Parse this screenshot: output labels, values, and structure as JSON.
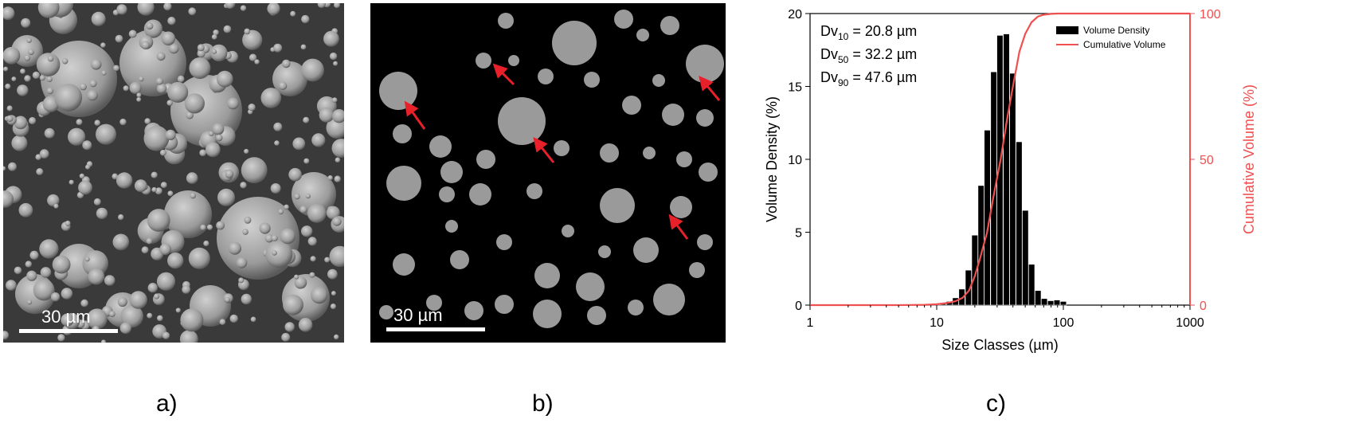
{
  "panels": {
    "a": {
      "caption": "a)",
      "scale_label": "30 µm"
    },
    "b": {
      "caption": "b)",
      "scale_label": "30 µm"
    },
    "c": {
      "caption": "c)"
    }
  },
  "colors": {
    "bar_fill": "#000000",
    "cumulative_line": "#f05050",
    "right_axis": "#f05050",
    "arrow": "#e8202a",
    "sem_background_a": "#3a3a3a",
    "sem_background_b": "#000000"
  },
  "chart_data": {
    "type": "bar",
    "xlabel": "Size Classes (µm)",
    "ylabel": "Volume Density (%)",
    "y2label": "Cumulative Volume (%)",
    "xscale": "log",
    "xlim": [
      1,
      1000
    ],
    "ylim": [
      0,
      20
    ],
    "y2lim": [
      0,
      100
    ],
    "x_ticks": [
      "1",
      "10",
      "100",
      "1000"
    ],
    "y_ticks": [
      "0",
      "5",
      "10",
      "15",
      "20"
    ],
    "y2_ticks": [
      "0",
      "50",
      "100"
    ],
    "legend": {
      "position": "top-right",
      "entries": [
        "Volume Density",
        "Cumulative Volume"
      ]
    },
    "annotations": [
      {
        "prefix": "Dv",
        "sub": "10",
        "text": " = 20.8 µm"
      },
      {
        "prefix": "Dv",
        "sub": "50",
        "text": " = 32.2 µm"
      },
      {
        "prefix": "Dv",
        "sub": "90",
        "text": " = 47.6 µm"
      }
    ],
    "series": [
      {
        "name": "Volume Density",
        "type": "bar",
        "x": [
          8.9,
          10.0,
          11.2,
          12.6,
          14.1,
          15.8,
          17.8,
          20.0,
          22.4,
          25.1,
          28.2,
          31.6,
          35.5,
          39.8,
          44.7,
          50.1,
          56.2,
          63.1,
          70.8,
          79.4,
          89.1,
          100.0
        ],
        "values": [
          0.05,
          0.08,
          0.15,
          0.25,
          0.5,
          1.1,
          2.4,
          4.8,
          8.2,
          12.0,
          16.0,
          18.5,
          18.6,
          15.9,
          11.2,
          6.5,
          2.8,
          1.0,
          0.45,
          0.3,
          0.35,
          0.25
        ]
      },
      {
        "name": "Cumulative Volume",
        "type": "line",
        "axis": "right",
        "x": [
          1,
          5,
          8,
          10,
          12,
          14,
          16,
          18,
          20,
          22,
          25,
          28,
          32,
          36,
          40,
          45,
          50,
          56,
          63,
          70,
          80,
          90,
          100,
          1000
        ],
        "values": [
          0,
          0,
          0.1,
          0.3,
          0.7,
          1.3,
          2.5,
          5,
          10,
          16,
          25,
          37,
          50,
          64,
          75,
          87,
          93,
          97,
          99,
          99.6,
          99.9,
          100,
          100,
          100
        ]
      }
    ]
  }
}
